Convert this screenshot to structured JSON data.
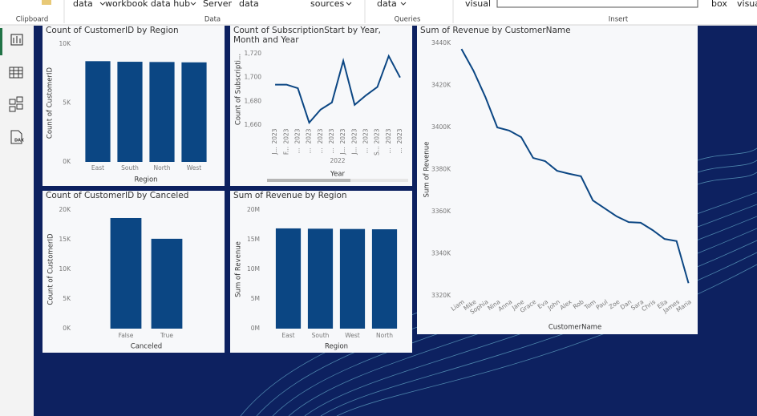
{
  "ribbon": {
    "top_labels": [
      "data",
      "workbook data hub",
      "Server",
      "data",
      "sources",
      "data",
      "visual",
      "box",
      "visua"
    ],
    "groups": [
      "Clipboard",
      "Data",
      "Queries",
      "Insert"
    ]
  },
  "sidebar": {
    "dax_label": "DAX"
  },
  "chart_data": [
    {
      "type": "bar",
      "title": "Count of CustomerID by Region",
      "color": "#0b4683",
      "categories": [
        "East",
        "South",
        "North",
        "West"
      ],
      "values": [
        8550,
        8500,
        8480,
        8450
      ],
      "ylim": [
        0,
        10000
      ],
      "yticks": [
        {
          "value": 0,
          "label": "0K"
        },
        {
          "value": 5000,
          "label": "5K"
        },
        {
          "value": 10000,
          "label": "10K"
        }
      ],
      "x_title": "Region",
      "y_title": "Count of CustomerID"
    },
    {
      "type": "line",
      "title": "Count of SubscriptionStart by Year, Month and Year",
      "color": "#0b4683",
      "categories": [
        "2023",
        "2023",
        "2023",
        "2023",
        "2023",
        "2023",
        "2023",
        "2023",
        "2023",
        "2023",
        "2023",
        "2023"
      ],
      "month_labels": [
        "J...",
        "F...",
        "...",
        "...",
        "...",
        "...",
        "J...",
        "J...",
        "...",
        "S...",
        "...",
        "..."
      ],
      "group_label": "2022",
      "values": [
        1694,
        1694,
        1691,
        1662,
        1673,
        1679,
        1714,
        1677,
        1685,
        1692,
        1718,
        1700
      ],
      "ylim": [
        1660,
        1720
      ],
      "yticks": [
        {
          "value": 1660,
          "label": "1,660"
        },
        {
          "value": 1680,
          "label": "1,680"
        },
        {
          "value": 1700,
          "label": "1,700"
        },
        {
          "value": 1720,
          "label": "1,720"
        }
      ],
      "x_title": "Year",
      "y_title": "Count of Subscripti..."
    },
    {
      "type": "line",
      "title": "Sum of Revenue by CustomerName",
      "color": "#0b4683",
      "categories": [
        "Liam",
        "Mike",
        "Sophia",
        "Nina",
        "Anna",
        "Jane",
        "Grace",
        "Eva",
        "John",
        "Alex",
        "Rob",
        "Tom",
        "Paul",
        "Zoe",
        "Dan",
        "Sara",
        "Chris",
        "Ella",
        "James",
        "Maria"
      ],
      "values": [
        3437300,
        3427000,
        3414500,
        3400000,
        3398500,
        3395400,
        3385500,
        3384000,
        3379400,
        3378000,
        3376800,
        3365300,
        3361500,
        3357700,
        3355000,
        3354700,
        3351200,
        3347000,
        3346000,
        3326000
      ],
      "ylim": [
        3320000,
        3440000
      ],
      "yticks": [
        {
          "value": 3320000,
          "label": "3320K"
        },
        {
          "value": 3340000,
          "label": "3340K"
        },
        {
          "value": 3360000,
          "label": "3360K"
        },
        {
          "value": 3380000,
          "label": "3380K"
        },
        {
          "value": 3400000,
          "label": "3400K"
        },
        {
          "value": 3420000,
          "label": "3420K"
        },
        {
          "value": 3440000,
          "label": "3440K"
        }
      ],
      "x_title": "CustomerName",
      "y_title": "Sum of Revenue"
    },
    {
      "type": "bar",
      "title": "Count of CustomerID by Canceled",
      "color": "#0b4683",
      "categories": [
        "False",
        "True"
      ],
      "values": [
        18650,
        15150
      ],
      "ylim": [
        0,
        20000
      ],
      "yticks": [
        {
          "value": 0,
          "label": "0K"
        },
        {
          "value": 5000,
          "label": "5K"
        },
        {
          "value": 10000,
          "label": "10K"
        },
        {
          "value": 15000,
          "label": "15K"
        },
        {
          "value": 20000,
          "label": "20K"
        }
      ],
      "x_title": "Canceled",
      "y_title": "Count of CustomerID"
    },
    {
      "type": "bar",
      "title": "Sum of Revenue by Region",
      "color": "#0b4683",
      "categories": [
        "East",
        "South",
        "West",
        "North"
      ],
      "values": [
        16900000,
        16850000,
        16800000,
        16750000
      ],
      "ylim": [
        0,
        20000000
      ],
      "yticks": [
        {
          "value": 0,
          "label": "0M"
        },
        {
          "value": 5000000,
          "label": "5M"
        },
        {
          "value": 10000000,
          "label": "10M"
        },
        {
          "value": 15000000,
          "label": "15M"
        },
        {
          "value": 20000000,
          "label": "20M"
        }
      ],
      "x_title": "Region",
      "y_title": "Sum of Revenue"
    }
  ]
}
